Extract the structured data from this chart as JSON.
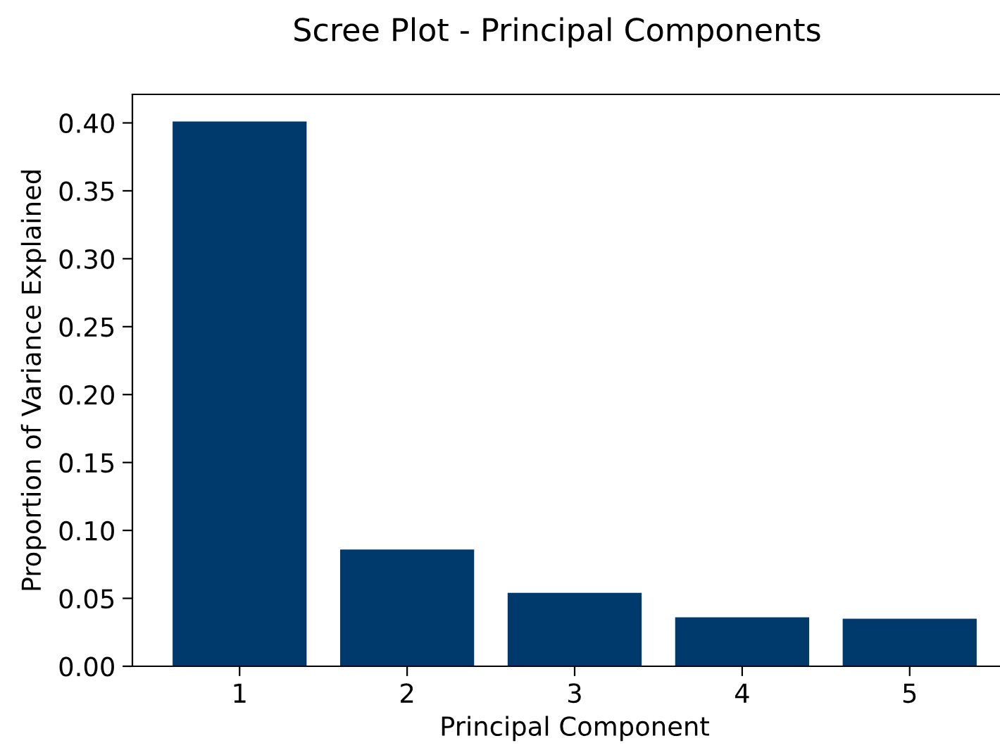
{
  "chart_data": {
    "type": "bar",
    "title": "Scree Plot - Principal Components",
    "xlabel": "Principal Component",
    "ylabel": "Proportion of Variance Explained",
    "categories": [
      "1",
      "2",
      "3",
      "4",
      "5"
    ],
    "values": [
      0.401,
      0.086,
      0.054,
      0.036,
      0.035
    ],
    "color": "#003a6d",
    "ylim": [
      0,
      0.421
    ],
    "yticks": [
      {
        "value": 0,
        "label": "0.00"
      },
      {
        "value": 0.05,
        "label": "0.05"
      },
      {
        "value": 0.1,
        "label": "0.10"
      },
      {
        "value": 0.15,
        "label": "0.15"
      },
      {
        "value": 0.2,
        "label": "0.20"
      },
      {
        "value": 0.25,
        "label": "0.25"
      },
      {
        "value": 0.3,
        "label": "0.30"
      },
      {
        "value": 0.35,
        "label": "0.35"
      },
      {
        "value": 0.4,
        "label": "0.40"
      }
    ],
    "grid": false
  }
}
